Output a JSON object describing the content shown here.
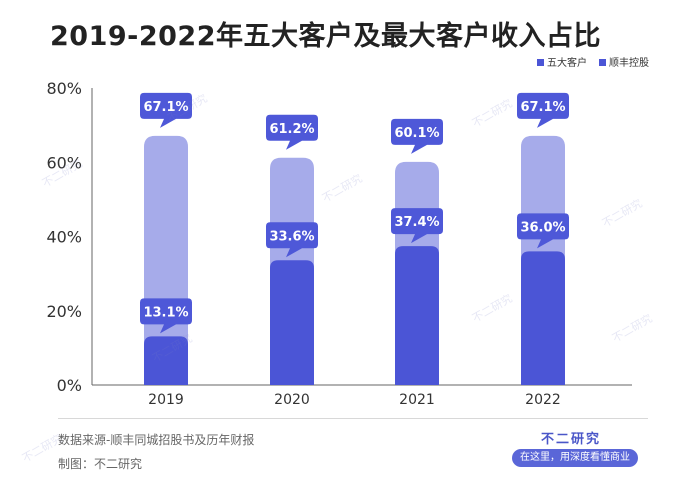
{
  "title": "2019-2022年五大客户及最大客户收入占比",
  "source": "数据来源-顺丰同城招股书及历年财报",
  "maker": "制图：不二研究",
  "brand": {
    "name": "不二研究",
    "slogan": "在这里，用深度看懂商业"
  },
  "watermark": "不二研究",
  "colors": {
    "top5": "#a6abea",
    "largest": "#4b55d6",
    "callout": "#4e58d8",
    "text": "#333333"
  },
  "chart_data": {
    "type": "bar",
    "categories": [
      "2019",
      "2020",
      "2021",
      "2022"
    ],
    "series": [
      {
        "name": "五大客户",
        "values": [
          67.1,
          61.2,
          60.1,
          67.1
        ],
        "labels": [
          "67.1%",
          "61.2%",
          "60.1%",
          "67.1%"
        ]
      },
      {
        "name": "顺丰控股",
        "values": [
          13.1,
          33.6,
          37.4,
          36.0
        ],
        "labels": [
          "13.1%",
          "33.6%",
          "37.4%",
          "36.0%"
        ]
      }
    ],
    "yticks": [
      "0%",
      "20%",
      "40%",
      "60%",
      "80%"
    ],
    "ylim": [
      0,
      80
    ],
    "grid": false,
    "legend_position": "top-right",
    "xlabel": "",
    "ylabel": ""
  }
}
